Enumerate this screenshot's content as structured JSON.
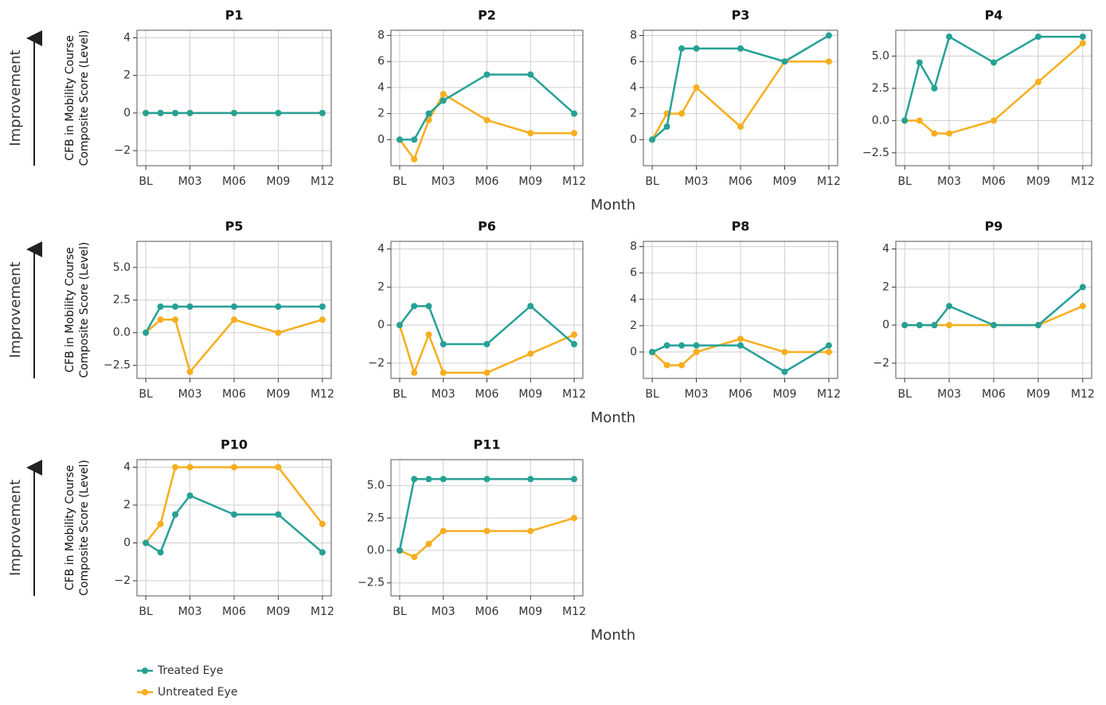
{
  "chart_data": [
    {
      "type": "line",
      "title": "P1",
      "x": [
        0,
        1,
        2,
        3,
        6,
        9,
        12
      ],
      "xlim": [
        -0.6,
        12.6
      ],
      "xticks": [
        {
          "value": 0,
          "label": "BL"
        },
        {
          "value": 3,
          "label": "M03"
        },
        {
          "value": 6,
          "label": "M06"
        },
        {
          "value": 9,
          "label": "M09"
        },
        {
          "value": 12,
          "label": "M12"
        }
      ],
      "ylim": [
        -2.8,
        4.4
      ],
      "yticks": [
        {
          "value": -2,
          "label": "−2"
        },
        0,
        2,
        4
      ],
      "grid": true,
      "series": [
        {
          "name": "Untreated Eye",
          "color": "#f7ae1f",
          "values": [
            0,
            0,
            0,
            0,
            0,
            0,
            0
          ]
        },
        {
          "name": "Treated Eye",
          "color": "#26a196",
          "values": [
            0,
            0,
            0,
            0,
            0,
            0,
            0
          ]
        }
      ]
    },
    {
      "type": "line",
      "title": "P2",
      "x": [
        0,
        1,
        2,
        3,
        6,
        9,
        12
      ],
      "xlim": [
        -0.6,
        12.6
      ],
      "xticks": [
        {
          "value": 0,
          "label": "BL"
        },
        {
          "value": 3,
          "label": "M03"
        },
        {
          "value": 6,
          "label": "M06"
        },
        {
          "value": 9,
          "label": "M09"
        },
        {
          "value": 12,
          "label": "M12"
        }
      ],
      "ylim": [
        -2,
        8.4
      ],
      "yticks": [
        0,
        2,
        4,
        6,
        8
      ],
      "grid": true,
      "series": [
        {
          "name": "Untreated Eye",
          "color": "#f7ae1f",
          "values": [
            0,
            -1.5,
            1.5,
            3.5,
            1.5,
            0.5,
            0.5
          ]
        },
        {
          "name": "Treated Eye",
          "color": "#26a196",
          "values": [
            0,
            0,
            2,
            3,
            5,
            5,
            2
          ]
        }
      ]
    },
    {
      "type": "line",
      "title": "P3",
      "x": [
        0,
        1,
        2,
        3,
        6,
        9,
        12
      ],
      "xlim": [
        -0.6,
        12.6
      ],
      "xticks": [
        {
          "value": 0,
          "label": "BL"
        },
        {
          "value": 3,
          "label": "M03"
        },
        {
          "value": 6,
          "label": "M06"
        },
        {
          "value": 9,
          "label": "M09"
        },
        {
          "value": 12,
          "label": "M12"
        }
      ],
      "ylim": [
        -2,
        8.4
      ],
      "yticks": [
        0,
        2,
        4,
        6,
        8
      ],
      "grid": true,
      "series": [
        {
          "name": "Untreated Eye",
          "color": "#f7ae1f",
          "values": [
            0,
            2,
            2,
            4,
            1,
            6,
            6
          ]
        },
        {
          "name": "Treated Eye",
          "color": "#26a196",
          "values": [
            0,
            1,
            7,
            7,
            7,
            6,
            8
          ]
        }
      ]
    },
    {
      "type": "line",
      "title": "P4",
      "x": [
        0,
        1,
        2,
        3,
        6,
        9,
        12
      ],
      "xlim": [
        -0.6,
        12.6
      ],
      "xticks": [
        {
          "value": 0,
          "label": "BL"
        },
        {
          "value": 3,
          "label": "M03"
        },
        {
          "value": 6,
          "label": "M06"
        },
        {
          "value": 9,
          "label": "M09"
        },
        {
          "value": 12,
          "label": "M12"
        }
      ],
      "ylim": [
        -3.5,
        7
      ],
      "yticks": [
        {
          "value": -2.5,
          "label": "−2.5"
        },
        {
          "value": 0,
          "label": "0.0"
        },
        {
          "value": 2.5,
          "label": "2.5"
        },
        {
          "value": 5,
          "label": "5.0"
        }
      ],
      "grid": true,
      "series": [
        {
          "name": "Untreated Eye",
          "color": "#f7ae1f",
          "values": [
            0,
            0,
            -1,
            -1,
            0,
            3,
            6
          ]
        },
        {
          "name": "Treated Eye",
          "color": "#26a196",
          "values": [
            0,
            4.5,
            2.5,
            6.5,
            4.5,
            6.5,
            6.5
          ]
        }
      ]
    },
    {
      "type": "line",
      "title": "P5",
      "x": [
        0,
        1,
        2,
        3,
        6,
        9,
        12
      ],
      "xlim": [
        -0.6,
        12.6
      ],
      "xticks": [
        {
          "value": 0,
          "label": "BL"
        },
        {
          "value": 3,
          "label": "M03"
        },
        {
          "value": 6,
          "label": "M06"
        },
        {
          "value": 9,
          "label": "M09"
        },
        {
          "value": 12,
          "label": "M12"
        }
      ],
      "ylim": [
        -3.5,
        7
      ],
      "yticks": [
        {
          "value": -2.5,
          "label": "−2.5"
        },
        {
          "value": 0,
          "label": "0.0"
        },
        {
          "value": 2.5,
          "label": "2.5"
        },
        {
          "value": 5,
          "label": "5.0"
        }
      ],
      "grid": true,
      "series": [
        {
          "name": "Untreated Eye",
          "color": "#f7ae1f",
          "values": [
            0,
            1,
            1,
            -3,
            1,
            0,
            1
          ]
        },
        {
          "name": "Treated Eye",
          "color": "#26a196",
          "values": [
            0,
            2,
            2,
            2,
            2,
            2,
            2
          ]
        }
      ]
    },
    {
      "type": "line",
      "title": "P6",
      "x": [
        0,
        1,
        2,
        3,
        6,
        9,
        12
      ],
      "xlim": [
        -0.6,
        12.6
      ],
      "xticks": [
        {
          "value": 0,
          "label": "BL"
        },
        {
          "value": 3,
          "label": "M03"
        },
        {
          "value": 6,
          "label": "M06"
        },
        {
          "value": 9,
          "label": "M09"
        },
        {
          "value": 12,
          "label": "M12"
        }
      ],
      "ylim": [
        -2.8,
        4.4
      ],
      "yticks": [
        {
          "value": -2,
          "label": "−2"
        },
        0,
        2,
        4
      ],
      "grid": true,
      "series": [
        {
          "name": "Untreated Eye",
          "color": "#f7ae1f",
          "values": [
            0,
            -2.5,
            -0.5,
            -2.5,
            -2.5,
            -1.5,
            -0.5
          ]
        },
        {
          "name": "Treated Eye",
          "color": "#26a196",
          "values": [
            0,
            1,
            1,
            -1,
            -1,
            1,
            -1
          ]
        }
      ]
    },
    {
      "type": "line",
      "title": "P8",
      "x": [
        0,
        1,
        2,
        3,
        6,
        9,
        12
      ],
      "xlim": [
        -0.6,
        12.6
      ],
      "xticks": [
        {
          "value": 0,
          "label": "BL"
        },
        {
          "value": 3,
          "label": "M03"
        },
        {
          "value": 6,
          "label": "M06"
        },
        {
          "value": 9,
          "label": "M09"
        },
        {
          "value": 12,
          "label": "M12"
        }
      ],
      "ylim": [
        -2,
        8.4
      ],
      "yticks": [
        0,
        2,
        4,
        6,
        8
      ],
      "grid": true,
      "series": [
        {
          "name": "Untreated Eye",
          "color": "#f7ae1f",
          "values": [
            0,
            -1,
            -1,
            0,
            1,
            0,
            0
          ]
        },
        {
          "name": "Treated Eye",
          "color": "#26a196",
          "values": [
            0,
            0.5,
            0.5,
            0.5,
            0.5,
            -1.5,
            0.5
          ]
        }
      ]
    },
    {
      "type": "line",
      "title": "P9",
      "x": [
        0,
        1,
        2,
        3,
        6,
        9,
        12
      ],
      "xlim": [
        -0.6,
        12.6
      ],
      "xticks": [
        {
          "value": 0,
          "label": "BL"
        },
        {
          "value": 3,
          "label": "M03"
        },
        {
          "value": 6,
          "label": "M06"
        },
        {
          "value": 9,
          "label": "M09"
        },
        {
          "value": 12,
          "label": "M12"
        }
      ],
      "ylim": [
        -2.8,
        4.4
      ],
      "yticks": [
        {
          "value": -2,
          "label": "−2"
        },
        0,
        2,
        4
      ],
      "grid": true,
      "series": [
        {
          "name": "Untreated Eye",
          "color": "#f7ae1f",
          "values": [
            0,
            0,
            0,
            0,
            0,
            0,
            1
          ]
        },
        {
          "name": "Treated Eye",
          "color": "#26a196",
          "values": [
            0,
            0,
            0,
            1,
            0,
            0,
            2
          ]
        }
      ]
    },
    {
      "type": "line",
      "title": "P10",
      "x": [
        0,
        1,
        2,
        3,
        6,
        9,
        12
      ],
      "xlim": [
        -0.6,
        12.6
      ],
      "xticks": [
        {
          "value": 0,
          "label": "BL"
        },
        {
          "value": 3,
          "label": "M03"
        },
        {
          "value": 6,
          "label": "M06"
        },
        {
          "value": 9,
          "label": "M09"
        },
        {
          "value": 12,
          "label": "M12"
        }
      ],
      "ylim": [
        -2.8,
        4.4
      ],
      "yticks": [
        {
          "value": -2,
          "label": "−2"
        },
        0,
        2,
        4
      ],
      "grid": true,
      "series": [
        {
          "name": "Untreated Eye",
          "color": "#f7ae1f",
          "values": [
            0,
            1,
            4,
            4,
            4,
            4,
            1
          ]
        },
        {
          "name": "Treated Eye",
          "color": "#26a196",
          "values": [
            0,
            -0.5,
            1.5,
            2.5,
            1.5,
            1.5,
            -0.5
          ]
        }
      ]
    },
    {
      "type": "line",
      "title": "P11",
      "x": [
        0,
        1,
        2,
        3,
        6,
        9,
        12
      ],
      "xlim": [
        -0.6,
        12.6
      ],
      "xticks": [
        {
          "value": 0,
          "label": "BL"
        },
        {
          "value": 3,
          "label": "M03"
        },
        {
          "value": 6,
          "label": "M06"
        },
        {
          "value": 9,
          "label": "M09"
        },
        {
          "value": 12,
          "label": "M12"
        }
      ],
      "ylim": [
        -3.5,
        7
      ],
      "yticks": [
        {
          "value": -2.5,
          "label": "−2.5"
        },
        {
          "value": 0,
          "label": "0.0"
        },
        {
          "value": 2.5,
          "label": "2.5"
        },
        {
          "value": 5,
          "label": "5.0"
        }
      ],
      "grid": true,
      "series": [
        {
          "name": "Untreated Eye",
          "color": "#f7ae1f",
          "values": [
            0,
            -0.5,
            0.5,
            1.5,
            1.5,
            1.5,
            2.5
          ]
        },
        {
          "name": "Treated Eye",
          "color": "#26a196",
          "values": [
            0,
            5.5,
            5.5,
            5.5,
            5.5,
            5.5,
            5.5
          ]
        }
      ]
    }
  ],
  "figure": {
    "x_label": "Month",
    "improvement_label": "Improvement",
    "y_label": [
      "CFB in Mobility Course",
      "Composite Score (Level)"
    ]
  }
}
